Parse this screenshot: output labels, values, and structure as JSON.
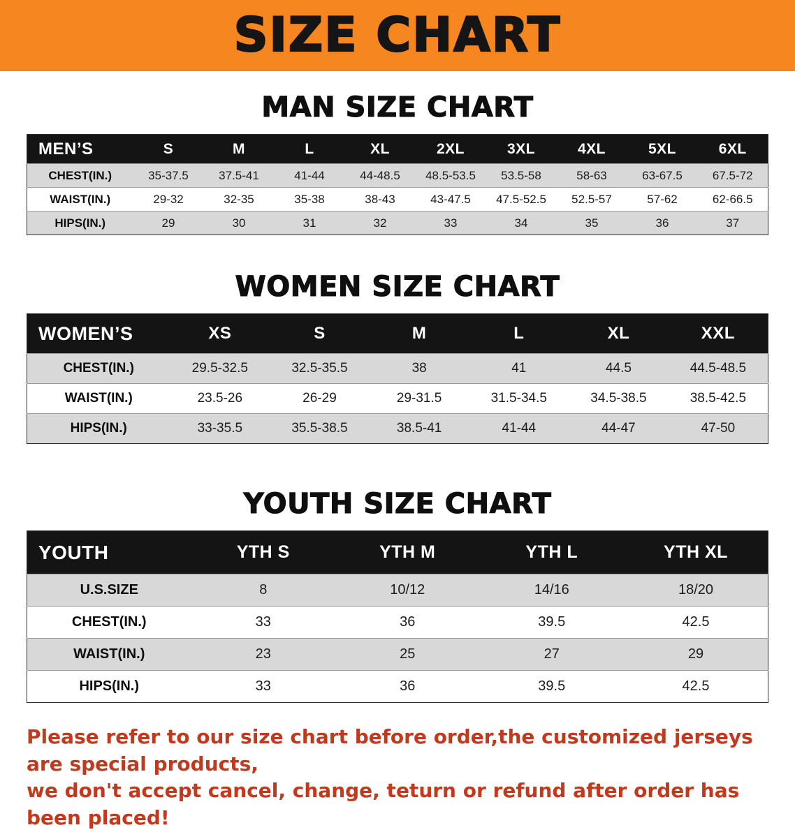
{
  "banner": {
    "title": "SIZE CHART"
  },
  "sections": [
    {
      "heading": "MAN SIZE CHART",
      "table": {
        "header": [
          "MEN’S",
          "S",
          "M",
          "L",
          "XL",
          "2XL",
          "3XL",
          "4XL",
          "5XL",
          "6XL"
        ],
        "rows": [
          [
            "CHEST(IN.)",
            "35-37.5",
            "37.5-41",
            "41-44",
            "44-48.5",
            "48.5-53.5",
            "53.5-58",
            "58-63",
            "63-67.5",
            "67.5-72"
          ],
          [
            "WAIST(IN.)",
            "29-32",
            "32-35",
            "35-38",
            "38-43",
            "43-47.5",
            "47.5-52.5",
            "52.5-57",
            "57-62",
            "62-66.5"
          ],
          [
            "HIPS(IN.)",
            "29",
            "30",
            "31",
            "32",
            "33",
            "34",
            "35",
            "36",
            "37"
          ]
        ]
      }
    },
    {
      "heading": "WOMEN SIZE CHART",
      "table": {
        "header": [
          "WOMEN’S",
          "XS",
          "S",
          "M",
          "L",
          "XL",
          "XXL"
        ],
        "rows": [
          [
            "CHEST(IN.)",
            "29.5-32.5",
            "32.5-35.5",
            "38",
            "41",
            "44.5",
            "44.5-48.5"
          ],
          [
            "WAIST(IN.)",
            "23.5-26",
            "26-29",
            "29-31.5",
            "31.5-34.5",
            "34.5-38.5",
            "38.5-42.5"
          ],
          [
            "HIPS(IN.)",
            "33-35.5",
            "35.5-38.5",
            "38.5-41",
            "41-44",
            "44-47",
            "47-50"
          ]
        ]
      }
    },
    {
      "heading": "YOUTH SIZE CHART",
      "table": {
        "header": [
          "YOUTH",
          "YTH S",
          "YTH M",
          "YTH L",
          "YTH XL"
        ],
        "rows": [
          [
            "U.S.SIZE",
            "8",
            "10/12",
            "14/16",
            "18/20"
          ],
          [
            "CHEST(IN.)",
            "33",
            "36",
            "39.5",
            "42.5"
          ],
          [
            "WAIST(IN.)",
            "23",
            "25",
            "27",
            "29"
          ],
          [
            "HIPS(IN.)",
            "33",
            "36",
            "39.5",
            "42.5"
          ]
        ]
      }
    }
  ],
  "note": {
    "line1": "Please refer to our size chart before order,the customized jerseys are special products,",
    "line2": "we don't accept cancel, change, teturn or refund after order has been placed!"
  },
  "colors": {
    "banner_bg": "#F6861F",
    "header_bg": "#141414",
    "row_shade": "#d8d8d8",
    "note_red": "#c23a1e"
  }
}
